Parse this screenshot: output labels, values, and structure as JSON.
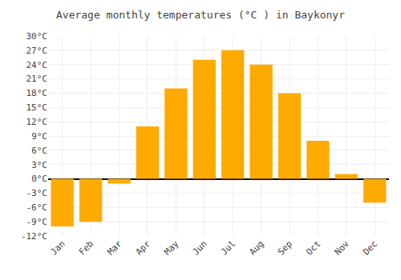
{
  "chart_data": {
    "type": "bar",
    "title": "Average monthly temperatures (°C ) in Baykonyr",
    "categories": [
      "Jan",
      "Feb",
      "Mar",
      "Apr",
      "May",
      "Jun",
      "Jul",
      "Aug",
      "Sep",
      "Oct",
      "Nov",
      "Dec"
    ],
    "values": [
      -10,
      -9,
      -1,
      11,
      19,
      25,
      27,
      24,
      18,
      8,
      1,
      -5
    ],
    "color": "#FFAA00",
    "ylim": [
      -12,
      30
    ],
    "yticks": [
      {
        "value": -12,
        "label": "-12°C"
      },
      {
        "value": -9,
        "label": "-9°C"
      },
      {
        "value": -6,
        "label": "-6°C"
      },
      {
        "value": -3,
        "label": "-3°C"
      },
      {
        "value": 0,
        "label": "0°C"
      },
      {
        "value": 3,
        "label": "3°C"
      },
      {
        "value": 6,
        "label": "6°C"
      },
      {
        "value": 9,
        "label": "9°C"
      },
      {
        "value": 12,
        "label": "12°C"
      },
      {
        "value": 15,
        "label": "15°C"
      },
      {
        "value": 18,
        "label": "18°C"
      },
      {
        "value": 21,
        "label": "21°C"
      },
      {
        "value": 24,
        "label": "24°C"
      },
      {
        "value": 27,
        "label": "27°C"
      },
      {
        "value": 30,
        "label": "30°C"
      }
    ],
    "grid": true
  }
}
